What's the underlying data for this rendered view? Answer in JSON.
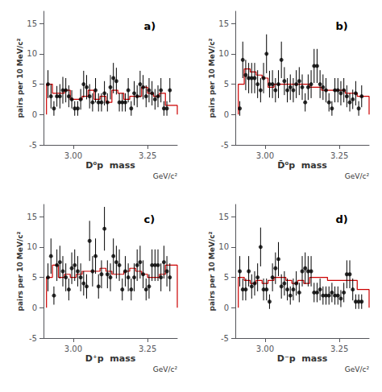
{
  "chart_data": [
    {
      "type": "errorbar",
      "panel_label": "a)",
      "xlabel": "D⁰p  mass",
      "xunit": "GeV/c²",
      "ylabel": "pairs per 10 MeV/c²",
      "xlim": [
        2.9,
        3.35
      ],
      "xticks": [
        {
          "value": 3.0,
          "label": "3.00"
        },
        {
          "value": 3.25,
          "label": "3.25"
        }
      ],
      "ylim": [
        -5,
        17
      ],
      "yticks": [
        -5,
        0,
        5,
        10,
        15
      ],
      "grid": false,
      "series": [
        {
          "type": "step",
          "color": "#cc0000",
          "bins": [
            2.91,
            2.93,
            2.95,
            2.97,
            2.99,
            3.01,
            3.03,
            3.05,
            3.07,
            3.09,
            3.11,
            3.13,
            3.15,
            3.17,
            3.19,
            3.21,
            3.23,
            3.25,
            3.27,
            3.29,
            3.31,
            3.33,
            3.35
          ],
          "values": [
            5.0,
            3.5,
            3.5,
            4.0,
            2.5,
            2.5,
            3.0,
            4.0,
            2.5,
            3.0,
            2.0,
            4.0,
            3.5,
            2.5,
            3.0,
            3.0,
            4.5,
            3.5,
            3.0,
            3.5,
            1.5,
            1.5
          ]
        },
        {
          "type": "errorbar",
          "color": "#000000",
          "marker": "circle",
          "x": [
            2.915,
            2.925,
            2.935,
            2.945,
            2.955,
            2.965,
            2.975,
            2.985,
            2.995,
            3.005,
            3.015,
            3.025,
            3.035,
            3.045,
            3.055,
            3.065,
            3.075,
            3.085,
            3.095,
            3.105,
            3.115,
            3.125,
            3.135,
            3.145,
            3.155,
            3.165,
            3.175,
            3.185,
            3.195,
            3.205,
            3.215,
            3.225,
            3.235,
            3.245,
            3.255,
            3.265,
            3.275,
            3.285,
            3.295,
            3.305,
            3.315,
            3.325
          ],
          "values": [
            5.0,
            3.0,
            1.0,
            3.0,
            3.0,
            4.0,
            4.0,
            3.0,
            2.5,
            1.0,
            1.0,
            2.5,
            5.0,
            4.5,
            3.0,
            2.0,
            4.0,
            2.0,
            2.0,
            3.5,
            2.0,
            4.5,
            6.0,
            5.5,
            2.0,
            2.0,
            2.0,
            4.0,
            1.0,
            3.5,
            3.0,
            5.0,
            4.5,
            3.0,
            4.0,
            3.5,
            2.5,
            3.0,
            4.0,
            1.0,
            1.0,
            4.0
          ],
          "errors": [
            2.3,
            2.0,
            1.2,
            1.7,
            2.0,
            2.2,
            2.0,
            1.8,
            1.5,
            1.2,
            1.2,
            1.7,
            2.2,
            2.0,
            2.0,
            1.5,
            2.0,
            1.5,
            1.5,
            2.0,
            1.5,
            2.0,
            2.5,
            2.2,
            1.5,
            1.5,
            1.5,
            2.0,
            1.2,
            2.0,
            1.8,
            2.2,
            2.0,
            1.8,
            2.0,
            2.0,
            1.7,
            1.8,
            2.0,
            1.2,
            1.2,
            2.0
          ]
        }
      ]
    },
    {
      "type": "errorbar",
      "panel_label": "b)",
      "xlabel": "D̄⁰p  mass",
      "xunit": "GeV/c²",
      "ylabel": "pairs per 10 MeV/c²",
      "xlim": [
        2.9,
        3.35
      ],
      "xticks": [
        {
          "value": 3.0,
          "label": "3.00"
        },
        {
          "value": 3.25,
          "label": "3.25"
        }
      ],
      "ylim": [
        -5,
        17
      ],
      "yticks": [
        -5,
        0,
        5,
        10,
        15
      ],
      "grid": false,
      "series": [
        {
          "type": "step",
          "color": "#cc0000",
          "bins": [
            2.91,
            2.93,
            2.95,
            2.97,
            2.99,
            3.01,
            3.03,
            3.05,
            3.07,
            3.09,
            3.11,
            3.13,
            3.15,
            3.17,
            3.19,
            3.21,
            3.23,
            3.25,
            3.27,
            3.29,
            3.31,
            3.33,
            3.35
          ],
          "values": [
            5.0,
            7.5,
            7.0,
            6.5,
            6.0,
            4.5,
            5.0,
            5.0,
            5.0,
            5.0,
            5.0,
            5.0,
            4.5,
            4.5,
            4.0,
            4.0,
            4.0,
            4.0,
            3.5,
            3.5,
            3.0,
            3.0
          ]
        },
        {
          "type": "errorbar",
          "color": "#000000",
          "marker": "circle",
          "x": [
            2.915,
            2.925,
            2.935,
            2.945,
            2.955,
            2.965,
            2.975,
            2.985,
            2.995,
            3.005,
            3.015,
            3.025,
            3.035,
            3.045,
            3.055,
            3.065,
            3.075,
            3.085,
            3.095,
            3.105,
            3.115,
            3.125,
            3.135,
            3.145,
            3.155,
            3.165,
            3.175,
            3.185,
            3.195,
            3.205,
            3.215,
            3.225,
            3.235,
            3.245,
            3.255,
            3.265,
            3.275,
            3.285,
            3.295,
            3.305,
            3.315,
            3.325
          ],
          "values": [
            1.0,
            9.0,
            6.5,
            6.0,
            6.0,
            6.0,
            5.0,
            4.0,
            6.0,
            10.0,
            5.0,
            5.0,
            4.0,
            5.0,
            9.0,
            5.5,
            4.0,
            4.5,
            4.0,
            5.0,
            5.5,
            4.5,
            2.0,
            4.5,
            5.0,
            8.0,
            8.0,
            5.0,
            4.5,
            4.0,
            2.0,
            1.0,
            4.0,
            4.0,
            3.5,
            4.0,
            3.0,
            2.0,
            2.5,
            3.5,
            1.0,
            3.0
          ],
          "errors": [
            1.2,
            3.0,
            2.5,
            2.5,
            2.5,
            2.5,
            2.3,
            2.0,
            2.5,
            3.2,
            2.2,
            2.3,
            2.0,
            2.3,
            3.0,
            2.3,
            2.0,
            2.1,
            2.0,
            2.3,
            2.3,
            2.1,
            1.5,
            2.1,
            2.3,
            2.8,
            2.8,
            2.3,
            2.1,
            2.0,
            1.5,
            1.2,
            2.0,
            2.0,
            2.0,
            2.0,
            1.8,
            1.5,
            1.6,
            2.0,
            1.2,
            1.8
          ]
        }
      ]
    },
    {
      "type": "errorbar",
      "panel_label": "c)",
      "xlabel": "D⁺p  mass",
      "xunit": "GeV/c²",
      "ylabel": "pairs per 10 MeV/c²",
      "xlim": [
        2.9,
        3.35
      ],
      "xticks": [
        {
          "value": 3.0,
          "label": "3.00"
        },
        {
          "value": 3.25,
          "label": "3.25"
        }
      ],
      "ylim": [
        -5,
        17
      ],
      "yticks": [
        -5,
        0,
        5,
        10,
        15
      ],
      "grid": false,
      "series": [
        {
          "type": "step",
          "color": "#cc0000",
          "bins": [
            2.91,
            2.93,
            2.95,
            2.97,
            2.99,
            3.01,
            3.03,
            3.05,
            3.07,
            3.09,
            3.11,
            3.13,
            3.15,
            3.17,
            3.19,
            3.21,
            3.23,
            3.25,
            3.27,
            3.29,
            3.31,
            3.33,
            3.35
          ],
          "values": [
            5.0,
            7.0,
            5.0,
            5.5,
            5.0,
            5.5,
            6.0,
            6.0,
            6.0,
            6.5,
            6.0,
            5.5,
            5.5,
            6.0,
            6.5,
            6.0,
            5.5,
            5.0,
            5.0,
            5.5,
            7.0,
            7.0
          ]
        },
        {
          "type": "errorbar",
          "color": "#000000",
          "marker": "circle",
          "x": [
            2.915,
            2.925,
            2.935,
            2.945,
            2.955,
            2.965,
            2.975,
            2.985,
            2.995,
            3.005,
            3.015,
            3.025,
            3.035,
            3.045,
            3.055,
            3.065,
            3.075,
            3.085,
            3.095,
            3.105,
            3.115,
            3.125,
            3.135,
            3.145,
            3.155,
            3.165,
            3.175,
            3.185,
            3.195,
            3.205,
            3.215,
            3.225,
            3.235,
            3.245,
            3.255,
            3.265,
            3.275,
            3.285,
            3.295,
            3.305,
            3.315,
            3.325
          ],
          "values": [
            5.0,
            8.5,
            2.0,
            7.0,
            7.5,
            6.0,
            5.0,
            3.0,
            6.5,
            7.0,
            6.0,
            5.0,
            4.0,
            3.5,
            11.0,
            6.0,
            8.5,
            3.5,
            5.5,
            13.0,
            5.5,
            5.0,
            8.5,
            7.5,
            7.0,
            3.0,
            6.0,
            5.0,
            3.0,
            5.0,
            7.0,
            7.5,
            5.5,
            3.0,
            3.5,
            7.0,
            7.0,
            7.0,
            5.0,
            7.5,
            6.0,
            5.0
          ],
          "errors": [
            2.3,
            2.9,
            1.5,
            2.6,
            2.7,
            2.5,
            2.3,
            1.8,
            2.6,
            2.6,
            2.5,
            2.3,
            2.0,
            2.0,
            3.3,
            2.5,
            2.9,
            2.0,
            2.3,
            3.6,
            2.3,
            2.3,
            2.9,
            2.7,
            2.6,
            1.8,
            2.5,
            2.3,
            1.8,
            2.3,
            2.6,
            2.7,
            2.3,
            1.8,
            2.0,
            2.6,
            2.6,
            2.6,
            2.3,
            2.7,
            2.5,
            2.3
          ]
        }
      ]
    },
    {
      "type": "errorbar",
      "panel_label": "d)",
      "xlabel": "D⁻p  mass",
      "xunit": "GeV/c²",
      "ylabel": "pairs per 10 MeV/c²",
      "xlim": [
        2.9,
        3.35
      ],
      "xticks": [
        {
          "value": 3.0,
          "label": "3.00"
        },
        {
          "value": 3.25,
          "label": "3.25"
        }
      ],
      "ylim": [
        -5,
        17
      ],
      "yticks": [
        -5,
        0,
        5,
        10,
        15
      ],
      "grid": false,
      "series": [
        {
          "type": "step",
          "color": "#cc0000",
          "bins": [
            2.91,
            2.93,
            2.95,
            2.97,
            2.99,
            3.01,
            3.03,
            3.05,
            3.07,
            3.09,
            3.11,
            3.13,
            3.15,
            3.17,
            3.19,
            3.21,
            3.23,
            3.25,
            3.27,
            3.29,
            3.31,
            3.33,
            3.35
          ],
          "values": [
            5.0,
            4.5,
            4.0,
            4.5,
            4.0,
            4.5,
            5.0,
            5.0,
            4.5,
            4.0,
            4.5,
            4.0,
            5.0,
            5.0,
            5.0,
            4.5,
            4.5,
            4.5,
            4.5,
            4.5,
            3.0,
            3.0
          ]
        },
        {
          "type": "errorbar",
          "color": "#000000",
          "marker": "circle",
          "x": [
            2.915,
            2.925,
            2.935,
            2.945,
            2.955,
            2.965,
            2.975,
            2.985,
            2.995,
            3.005,
            3.015,
            3.025,
            3.035,
            3.045,
            3.055,
            3.065,
            3.075,
            3.085,
            3.095,
            3.105,
            3.115,
            3.125,
            3.135,
            3.145,
            3.155,
            3.165,
            3.175,
            3.185,
            3.195,
            3.205,
            3.215,
            3.225,
            3.235,
            3.245,
            3.255,
            3.265,
            3.275,
            3.285,
            3.295,
            3.305,
            3.315,
            3.325
          ],
          "values": [
            6.0,
            3.0,
            3.0,
            6.0,
            3.5,
            4.0,
            5.0,
            10.0,
            3.0,
            3.0,
            1.0,
            5.0,
            6.5,
            8.0,
            3.5,
            4.0,
            3.0,
            2.0,
            3.0,
            4.0,
            2.5,
            6.0,
            6.5,
            6.0,
            6.0,
            2.5,
            2.5,
            3.0,
            2.0,
            2.0,
            2.0,
            2.5,
            2.0,
            2.0,
            1.5,
            2.5,
            5.5,
            5.5,
            3.0,
            1.0,
            1.0,
            1.0
          ],
          "errors": [
            2.5,
            1.8,
            1.8,
            2.5,
            2.0,
            2.0,
            2.3,
            3.2,
            1.8,
            1.8,
            1.2,
            2.3,
            2.6,
            2.8,
            2.0,
            2.0,
            1.8,
            1.5,
            1.8,
            2.0,
            1.6,
            2.5,
            2.6,
            2.5,
            2.5,
            1.6,
            1.6,
            1.8,
            1.5,
            1.5,
            1.5,
            1.6,
            1.5,
            1.5,
            1.4,
            1.6,
            2.3,
            2.3,
            1.8,
            1.2,
            1.2,
            1.2
          ]
        }
      ]
    }
  ]
}
